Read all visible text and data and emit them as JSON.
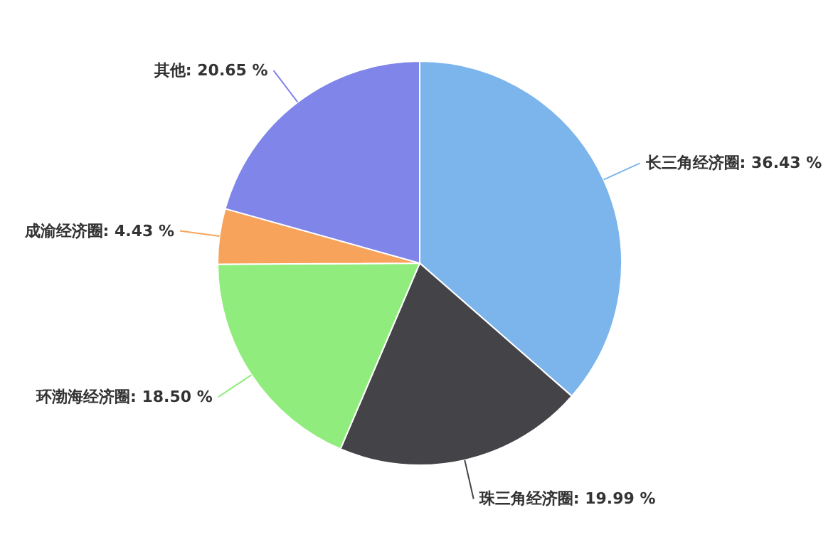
{
  "chart_data": {
    "type": "pie",
    "categories": [
      "长三角经济圈",
      "珠三角经济圈",
      "环渤海经济圈",
      "成渝经济圈",
      "其他"
    ],
    "values": [
      36.43,
      19.99,
      18.5,
      4.43,
      20.65
    ],
    "value_labels": [
      "36.43 %",
      "19.99 %",
      "18.50 %",
      "4.43 %",
      "20.65 %"
    ],
    "colors": [
      "#7cb5ec",
      "#434348",
      "#90ed7d",
      "#f7a35c",
      "#8085e9"
    ],
    "legend": false
  }
}
